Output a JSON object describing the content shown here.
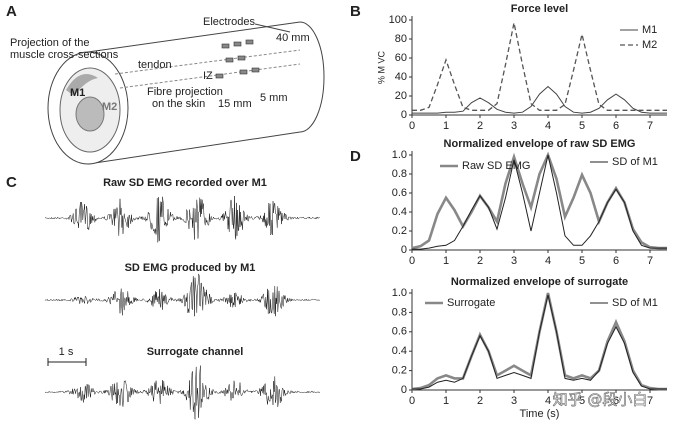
{
  "panels": {
    "a": "A",
    "b": "B",
    "c": "C",
    "d": "D"
  },
  "diagram": {
    "electrodes": "Electrodes",
    "distance": "40 mm",
    "projection": [
      "Projection of the",
      "muscle cross-sections"
    ],
    "tendon": "tendon",
    "iz": "IZ",
    "fibre": [
      "Fibre projection",
      "on the skin"
    ],
    "spacing1": "15 mm",
    "spacing2": "5 mm",
    "m1": "M1",
    "m2": "M2"
  },
  "emg": {
    "titles": [
      "Raw SD EMG recorded over M1",
      "SD EMG produced by M1",
      "Surrogate channel"
    ],
    "scale_bar": "1 s"
  },
  "watermark": "知乎 @段小白",
  "chart_data": [
    {
      "type": "line",
      "title": "Force level",
      "ylabel": "% M VC",
      "xlim": [
        0,
        7.5
      ],
      "xticks": [
        0,
        1,
        2,
        3,
        4,
        5,
        6,
        7
      ],
      "ylim": [
        0,
        100
      ],
      "yticks": [
        0,
        20,
        40,
        60,
        80,
        100
      ],
      "x": [
        0,
        0.25,
        0.5,
        0.75,
        1,
        1.25,
        1.5,
        1.75,
        2,
        2.25,
        2.5,
        2.75,
        3,
        3.25,
        3.5,
        3.75,
        4,
        4.25,
        4.5,
        4.75,
        5,
        5.25,
        5.5,
        5.75,
        6,
        6.25,
        6.5,
        6.75,
        7,
        7.25,
        7.5
      ],
      "series": [
        {
          "name": "M1",
          "color": "#444444",
          "linewidth": 1,
          "dash": false,
          "values": [
            2,
            2,
            2,
            2,
            3,
            3,
            4,
            13,
            18,
            13,
            6,
            3,
            2,
            3,
            9,
            22,
            30,
            22,
            9,
            3,
            2,
            3,
            7,
            16,
            22,
            16,
            7,
            3,
            2,
            2,
            2
          ]
        },
        {
          "name": "M2",
          "color": "#555555",
          "linewidth": 1.3,
          "dash": true,
          "values": [
            5,
            5,
            8,
            32,
            58,
            32,
            8,
            5,
            5,
            5,
            12,
            53,
            97,
            53,
            12,
            5,
            5,
            5,
            11,
            47,
            85,
            47,
            11,
            5,
            5,
            5,
            5,
            5,
            5,
            5,
            5
          ]
        }
      ]
    },
    {
      "type": "line",
      "title": "Normalized envelope of raw SD EMG",
      "xlim": [
        0,
        7.5
      ],
      "xticks": [
        0,
        1,
        2,
        3,
        4,
        5,
        6,
        7
      ],
      "ylim": [
        0,
        1
      ],
      "yticks": [
        0,
        0.2,
        0.4,
        0.6,
        0.8,
        {
          "value": 1,
          "label": "1.0"
        }
      ],
      "x": [
        0,
        0.25,
        0.5,
        0.75,
        1,
        1.25,
        1.5,
        1.75,
        2,
        2.25,
        2.5,
        2.75,
        3,
        3.25,
        3.5,
        3.75,
        4,
        4.25,
        4.5,
        4.75,
        5,
        5.25,
        5.5,
        5.75,
        6,
        6.25,
        6.5,
        6.75,
        7,
        7.25,
        7.5
      ],
      "series": [
        {
          "name": "Raw SD EMG",
          "color": "#888888",
          "linewidth": 2.6,
          "dash": false,
          "values": [
            0.02,
            0.04,
            0.1,
            0.38,
            0.55,
            0.42,
            0.25,
            0.4,
            0.57,
            0.45,
            0.3,
            0.7,
            0.98,
            0.7,
            0.45,
            0.8,
            1.0,
            0.75,
            0.35,
            0.55,
            0.79,
            0.6,
            0.3,
            0.5,
            0.65,
            0.5,
            0.22,
            0.08,
            0.03,
            0.02,
            0.02
          ]
        },
        {
          "name": "SD of M1",
          "color": "#222222",
          "linewidth": 1,
          "dash": false,
          "values": [
            0.01,
            0.01,
            0.02,
            0.04,
            0.05,
            0.1,
            0.25,
            0.42,
            0.57,
            0.45,
            0.22,
            0.55,
            0.95,
            0.6,
            0.2,
            0.6,
            1.0,
            0.6,
            0.15,
            0.05,
            0.05,
            0.15,
            0.3,
            0.5,
            0.64,
            0.5,
            0.2,
            0.05,
            0.02,
            0.02,
            0.02
          ]
        }
      ]
    },
    {
      "type": "line",
      "title": "Normalized envelope of surrogate",
      "xlabel": "Time (s)",
      "xlim": [
        0,
        7.5
      ],
      "xticks": [
        0,
        1,
        2,
        3,
        4,
        5,
        6,
        7
      ],
      "ylim": [
        0,
        1
      ],
      "yticks": [
        0,
        0.2,
        0.4,
        0.6,
        0.8,
        {
          "value": 1,
          "label": "1.0"
        }
      ],
      "x": [
        0,
        0.25,
        0.5,
        0.75,
        1,
        1.25,
        1.5,
        1.75,
        2,
        2.25,
        2.5,
        2.75,
        3,
        3.25,
        3.5,
        3.75,
        4,
        4.25,
        4.5,
        4.75,
        5,
        5.25,
        5.5,
        5.75,
        6,
        6.25,
        6.5,
        6.75,
        7,
        7.25,
        7.5
      ],
      "series": [
        {
          "name": "Surrogate",
          "color": "#888888",
          "linewidth": 2.6,
          "dash": false,
          "values": [
            0.01,
            0.02,
            0.05,
            0.12,
            0.15,
            0.12,
            0.12,
            0.35,
            0.57,
            0.4,
            0.15,
            0.2,
            0.25,
            0.2,
            0.15,
            0.6,
            1.0,
            0.6,
            0.15,
            0.12,
            0.15,
            0.12,
            0.2,
            0.5,
            0.7,
            0.5,
            0.2,
            0.05,
            0.02,
            0.01,
            0.01
          ]
        },
        {
          "name": "SD of M1",
          "color": "#222222",
          "linewidth": 1,
          "dash": false,
          "values": [
            0.01,
            0.01,
            0.03,
            0.08,
            0.1,
            0.08,
            0.12,
            0.35,
            0.56,
            0.4,
            0.12,
            0.15,
            0.18,
            0.15,
            0.12,
            0.6,
            0.98,
            0.6,
            0.12,
            0.1,
            0.12,
            0.1,
            0.2,
            0.48,
            0.65,
            0.48,
            0.18,
            0.04,
            0.01,
            0.01,
            0.01
          ]
        }
      ]
    }
  ]
}
